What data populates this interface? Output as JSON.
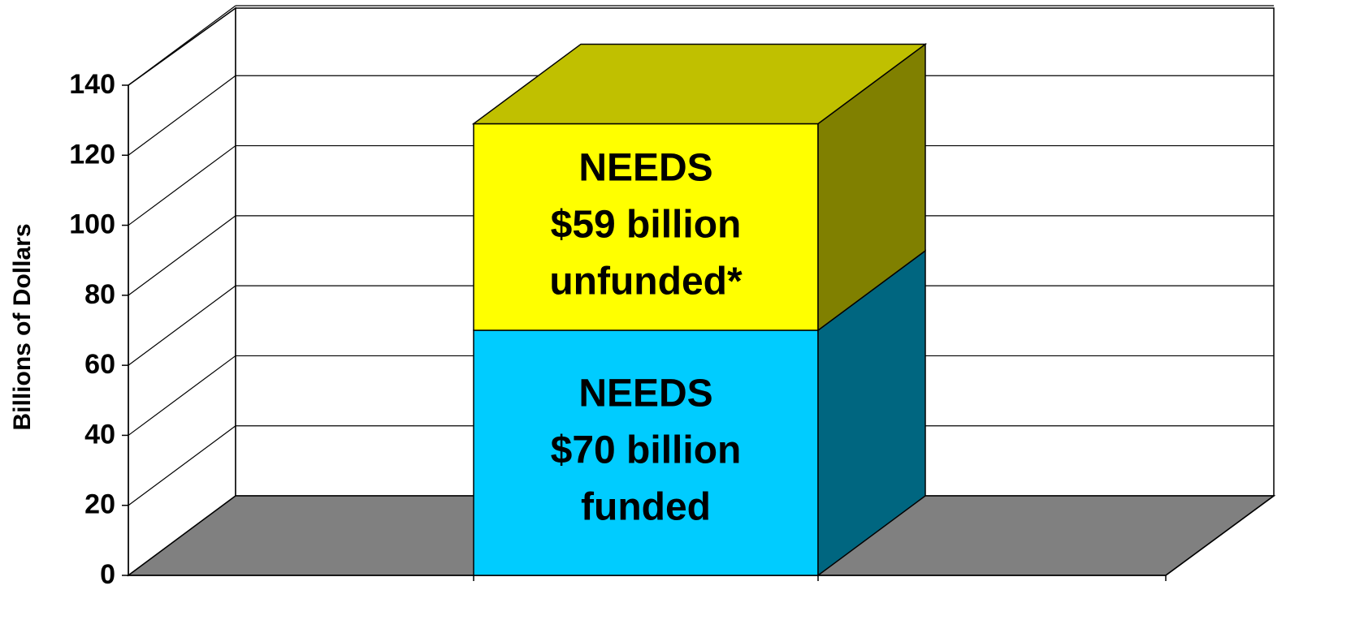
{
  "chart_data": {
    "type": "bar",
    "stacked": true,
    "three_d": true,
    "title": "",
    "xlabel": "",
    "ylabel": "Billions of Dollars",
    "ylim": [
      0,
      140
    ],
    "yticks": [
      0,
      20,
      40,
      60,
      80,
      100,
      120,
      140
    ],
    "grid": true,
    "categories": [
      ""
    ],
    "series": [
      {
        "values": [
          70
        ],
        "label_lines": [
          "NEEDS",
          "$70 billion",
          "funded"
        ],
        "color": "#00CCFF",
        "side_color": "#006680"
      },
      {
        "values": [
          59
        ],
        "label_lines": [
          "NEEDS",
          "$59 billion",
          "unfunded*"
        ],
        "color": "#FFFF00",
        "side_color": "#808000",
        "top_color": "#C0C000"
      }
    ],
    "floor_color": "#808080"
  }
}
